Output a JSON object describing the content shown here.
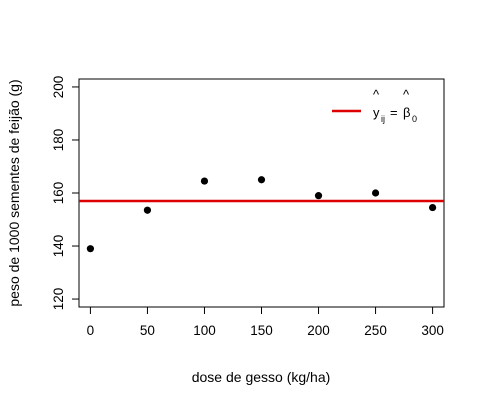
{
  "chart_data": {
    "type": "scatter",
    "title": "",
    "xlabel": "dose de gesso (kg/ha)",
    "ylabel": "peso de 1000 sementes de feijão (g)",
    "xlim": [
      -10,
      310
    ],
    "ylim": [
      117,
      203
    ],
    "x_ticks": [
      0,
      50,
      100,
      150,
      200,
      250,
      300
    ],
    "y_ticks": [
      120,
      140,
      160,
      180,
      200
    ],
    "grid": false,
    "points": {
      "x": [
        0,
        50,
        100,
        150,
        200,
        250,
        300
      ],
      "y": [
        139,
        153.5,
        164.5,
        165,
        159,
        160,
        154.5
      ],
      "color": "#000000"
    },
    "reference_line": {
      "type": "horizontal",
      "y": 157,
      "color": "#dd0000"
    },
    "legend": {
      "placement": "top-right",
      "entry": {
        "lhs": "y",
        "lhs_sub": "ij",
        "rhs": "β",
        "rhs_sub": "0",
        "color": "#dd0000"
      }
    }
  }
}
